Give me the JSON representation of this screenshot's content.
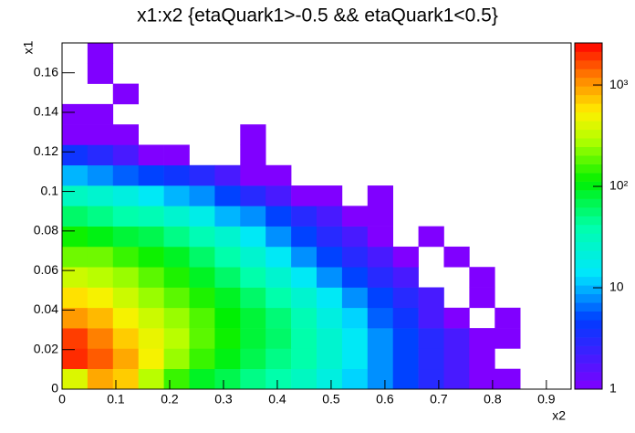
{
  "chart_data": {
    "type": "heatmap",
    "title": "x1:x2 {etaQuark1>-0.5 && etaQuark1<0.5}",
    "x_label": "x2",
    "y_label": "x1",
    "xlim": [
      0,
      0.946
    ],
    "ylim": [
      0,
      0.1751
    ],
    "xticks": [
      0,
      0.1,
      0.2,
      0.3,
      0.4,
      0.5,
      0.6,
      0.7,
      0.8,
      0.9
    ],
    "yticks": [
      0,
      0.02,
      0.04,
      0.06,
      0.08,
      0.1,
      0.12,
      0.14,
      0.16
    ],
    "xbins": [
      0,
      0.0473,
      0.0946,
      0.1419,
      0.1892,
      0.2365,
      0.2838,
      0.3311,
      0.3784,
      0.4257,
      0.473,
      0.5203,
      0.5676,
      0.6149,
      0.6622,
      0.7095,
      0.7568,
      0.8041,
      0.8514,
      0.8987,
      0.946
    ],
    "ybins": [
      0,
      0.0103,
      0.0206,
      0.0309,
      0.0412,
      0.0515,
      0.0618,
      0.0721,
      0.0824,
      0.0927,
      0.103,
      0.1133,
      0.1236,
      0.1339,
      0.1442,
      0.1545,
      0.1648,
      0.1751
    ],
    "zscale": "log",
    "zlim": [
      1,
      2600
    ],
    "zticks": [
      1,
      10,
      {
        "value": 100,
        "label": "10²"
      },
      {
        "value": 1000,
        "label": "10³"
      }
    ],
    "values": [
      [
        400,
        900,
        700,
        300,
        150,
        90,
        70,
        50,
        40,
        30,
        20,
        12,
        8,
        5,
        3,
        2,
        1,
        1,
        0,
        0
      ],
      [
        2000,
        1500,
        900,
        500,
        250,
        150,
        100,
        70,
        50,
        40,
        25,
        15,
        8,
        5,
        3,
        2,
        1,
        0,
        0,
        0
      ],
      [
        1800,
        1200,
        700,
        450,
        300,
        180,
        120,
        80,
        60,
        40,
        25,
        15,
        8,
        5,
        3,
        2,
        1,
        1,
        0,
        0
      ],
      [
        1000,
        800,
        500,
        350,
        250,
        170,
        110,
        80,
        55,
        35,
        20,
        12,
        6,
        4,
        2,
        1,
        0,
        1,
        0,
        0
      ],
      [
        600,
        500,
        350,
        250,
        180,
        130,
        90,
        60,
        40,
        25,
        15,
        8,
        5,
        3,
        2,
        0,
        1,
        0,
        0,
        0
      ],
      [
        350,
        300,
        250,
        180,
        130,
        90,
        60,
        40,
        25,
        15,
        8,
        5,
        3,
        2,
        0,
        0,
        1,
        0,
        0,
        0
      ],
      [
        200,
        200,
        150,
        120,
        90,
        60,
        40,
        25,
        15,
        8,
        5,
        3,
        2,
        1,
        0,
        1,
        0,
        0,
        0,
        0
      ],
      [
        120,
        100,
        80,
        70,
        50,
        35,
        25,
        15,
        8,
        5,
        3,
        2,
        1,
        0,
        1,
        0,
        0,
        0,
        0,
        0
      ],
      [
        60,
        50,
        40,
        35,
        25,
        18,
        10,
        8,
        5,
        3,
        2,
        1,
        1,
        0,
        0,
        0,
        0,
        0,
        0,
        0
      ],
      [
        30,
        25,
        20,
        15,
        10,
        8,
        5,
        3,
        2,
        1,
        1,
        0,
        1,
        0,
        0,
        0,
        0,
        0,
        0,
        0
      ],
      [
        10,
        8,
        6,
        5,
        4,
        3,
        2,
        1,
        1,
        0,
        0,
        0,
        0,
        0,
        0,
        0,
        0,
        0,
        0,
        0
      ],
      [
        4,
        3,
        2,
        1,
        1,
        0,
        0,
        1,
        0,
        0,
        0,
        0,
        0,
        0,
        0,
        0,
        0,
        0,
        0,
        0
      ],
      [
        1,
        1,
        1,
        0,
        0,
        0,
        0,
        1,
        0,
        0,
        0,
        0,
        0,
        0,
        0,
        0,
        0,
        0,
        0,
        0
      ],
      [
        1,
        1,
        0,
        0,
        0,
        0,
        0,
        0,
        0,
        0,
        0,
        0,
        0,
        0,
        0,
        0,
        0,
        0,
        0,
        0
      ],
      [
        0,
        0,
        1,
        0,
        0,
        0,
        0,
        0,
        0,
        0,
        0,
        0,
        0,
        0,
        0,
        0,
        0,
        0,
        0,
        0
      ],
      [
        0,
        1,
        0,
        0,
        0,
        0,
        0,
        0,
        0,
        0,
        0,
        0,
        0,
        0,
        0,
        0,
        0,
        0,
        0,
        0
      ],
      [
        0,
        1,
        0,
        0,
        0,
        0,
        0,
        0,
        0,
        0,
        0,
        0,
        0,
        0,
        0,
        0,
        0,
        0,
        0,
        0
      ]
    ]
  }
}
